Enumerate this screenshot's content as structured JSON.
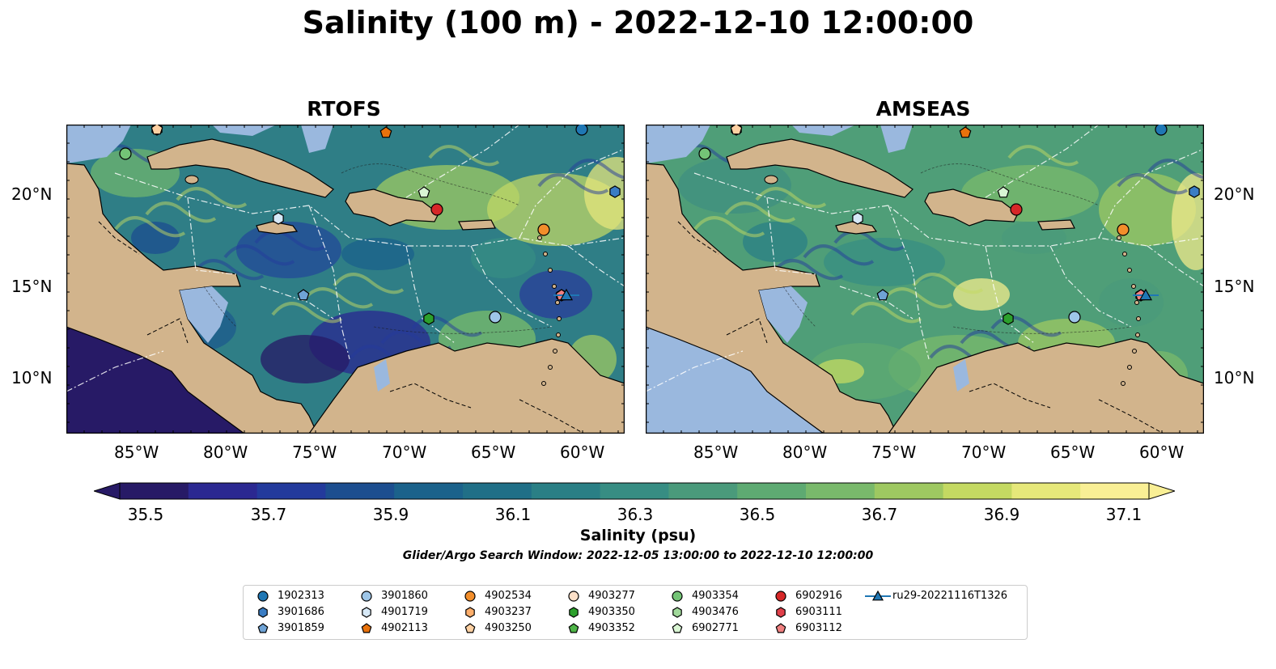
{
  "title": "Salinity (100 m) - 2022-12-10 12:00:00",
  "panels": [
    {
      "name": "RTOFS",
      "palette": "rtofs"
    },
    {
      "name": "AMSEAS",
      "palette": "amseas"
    }
  ],
  "lat_labels": [
    "20°N",
    "15°N",
    "10°N"
  ],
  "lon_labels": [
    "85°W",
    "80°W",
    "75°W",
    "70°W",
    "65°W",
    "60°W"
  ],
  "colorbar": {
    "label": "Salinity (psu)",
    "ticks": [
      "35.5",
      "35.7",
      "35.9",
      "36.1",
      "36.3",
      "36.5",
      "36.7",
      "36.9",
      "37.1"
    ],
    "range": [
      35.5,
      37.1
    ],
    "colors": [
      "#271a66",
      "#2b2891",
      "#233a9c",
      "#1c4e8f",
      "#1b628b",
      "#206f87",
      "#2a7f85",
      "#378d83",
      "#4a9a7b",
      "#5eaa72",
      "#79b96b",
      "#9ec861",
      "#c4d962",
      "#e6e87a",
      "#f9ef95"
    ]
  },
  "search_window": "Glider/Argo Search Window: 2022-12-05 13:00:00 to 2022-12-10 12:00:00",
  "legend": [
    {
      "label": "1902313",
      "marker": "circle",
      "color": "#1f77b4"
    },
    {
      "label": "3901686",
      "marker": "hexagon",
      "color": "#3a7dc4"
    },
    {
      "label": "3901859",
      "marker": "pentagon",
      "color": "#6fa3d6"
    },
    {
      "label": "3901860",
      "marker": "circle",
      "color": "#9ec6e8"
    },
    {
      "label": "4901719",
      "marker": "hexagon",
      "color": "#d6e8f6"
    },
    {
      "label": "4902113",
      "marker": "pentagon",
      "color": "#e8720c"
    },
    {
      "label": "4902534",
      "marker": "circle",
      "color": "#f28e2b"
    },
    {
      "label": "4903237",
      "marker": "hexagon",
      "color": "#fdae6b"
    },
    {
      "label": "4903250",
      "marker": "pentagon",
      "color": "#fdd0a2"
    },
    {
      "label": "4903277",
      "marker": "circle",
      "color": "#fde0c8"
    },
    {
      "label": "4903350",
      "marker": "hexagon",
      "color": "#2ca02c"
    },
    {
      "label": "4903352",
      "marker": "pentagon",
      "color": "#4fb548"
    },
    {
      "label": "4903354",
      "marker": "circle",
      "color": "#74c476"
    },
    {
      "label": "4903476",
      "marker": "hexagon",
      "color": "#a1d99b"
    },
    {
      "label": "6902771",
      "marker": "pentagon",
      "color": "#d9f5d3"
    },
    {
      "label": "6902916",
      "marker": "circle",
      "color": "#d62728"
    },
    {
      "label": "6903111",
      "marker": "hexagon",
      "color": "#e0404a"
    },
    {
      "label": "6903112",
      "marker": "pentagon",
      "color": "#f08080"
    },
    {
      "label": "ru29-20221116T1326",
      "marker": "triangle-line",
      "color": "#1f77b4"
    }
  ],
  "colors": {
    "land": "#d2b48c",
    "shallow_water": "#9ab8de"
  }
}
